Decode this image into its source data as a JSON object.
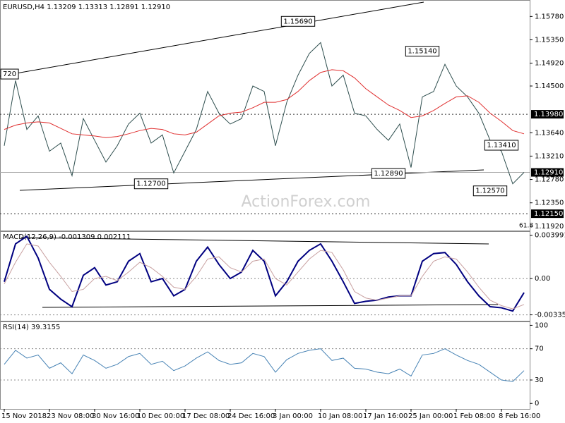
{
  "chart_data": [
    {
      "type": "line",
      "title": "EURUSD,H4  1.13209 1.13313 1.12891 1.12910",
      "watermark": "ActionForex.com",
      "fib_label": "61.8",
      "series": [
        {
          "color": "#2f4f4f",
          "values": [
            1.134,
            1.146,
            1.137,
            1.1395,
            1.133,
            1.1345,
            1.1285,
            1.139,
            1.135,
            1.131,
            1.134,
            1.138,
            1.14,
            1.1345,
            1.136,
            1.129,
            1.133,
            1.137,
            1.144,
            1.14,
            1.138,
            1.139,
            1.145,
            1.144,
            1.134,
            1.142,
            1.147,
            1.151,
            1.153,
            1.145,
            1.147,
            1.14,
            1.1395,
            1.137,
            1.135,
            1.138,
            1.13,
            1.143,
            1.144,
            1.149,
            1.145,
            1.143,
            1.14,
            1.135,
            1.133,
            1.127,
            1.1291
          ]
        },
        {
          "color": "#e03030",
          "values": [
            1.137,
            1.1378,
            1.1382,
            1.1384,
            1.1382,
            1.1372,
            1.1362,
            1.136,
            1.1358,
            1.1355,
            1.1357,
            1.1362,
            1.1368,
            1.1372,
            1.137,
            1.1362,
            1.136,
            1.1365,
            1.138,
            1.1395,
            1.14,
            1.1402,
            1.141,
            1.142,
            1.142,
            1.1425,
            1.144,
            1.146,
            1.1475,
            1.148,
            1.1478,
            1.1465,
            1.1445,
            1.143,
            1.1415,
            1.1405,
            1.1392,
            1.1395,
            1.1405,
            1.1418,
            1.143,
            1.1432,
            1.142,
            1.14,
            1.1385,
            1.1368,
            1.1362
          ]
        }
      ],
      "ylim": [
        1.1184,
        1.1607
      ],
      "yticks": [
        {
          "value": 1.1578,
          "label": "1.15780"
        },
        {
          "value": 1.1535,
          "label": "1.15350"
        },
        {
          "value": 1.1492,
          "label": "1.14920"
        },
        {
          "value": 1.145,
          "label": "1.14500"
        },
        {
          "value": 1.1364,
          "label": "1.13640"
        },
        {
          "value": 1.1321,
          "label": "1.13210"
        },
        {
          "value": 1.1278,
          "label": "1.12780"
        },
        {
          "value": 1.1235,
          "label": "1.12350"
        },
        {
          "value": 1.1192,
          "label": "1.11920"
        }
      ],
      "levels": [
        {
          "value": 1.1398,
          "label": "1.13980",
          "style": "dotted"
        },
        {
          "value": 1.1291,
          "label": "1.12910",
          "style": "solid"
        },
        {
          "value": 1.1215,
          "label": "1.12150",
          "style": "dotted"
        }
      ],
      "annotations": [
        {
          "value": 1.1472,
          "label": "720",
          "index": 0
        },
        {
          "value": 1.127,
          "label": "1.12700",
          "index": 13
        },
        {
          "value": 1.1569,
          "label": "1.15690",
          "index": 26
        },
        {
          "value": 1.1289,
          "label": "1.12890",
          "index": 34
        },
        {
          "value": 1.1514,
          "label": "1.15140",
          "index": 37
        },
        {
          "value": 1.1341,
          "label": "1.13410",
          "index": 44
        },
        {
          "value": 1.1257,
          "label": "1.12570",
          "index": 43
        }
      ]
    },
    {
      "type": "line",
      "title": "MACD(12,26,9) -0.001309  0.002111",
      "series": [
        {
          "color": "#000080",
          "values": [
            -0.0003,
            0.0032,
            0.0039,
            0.0019,
            -0.001,
            -0.0019,
            -0.0026,
            0.0003,
            0.001,
            -0.0006,
            -0.0003,
            0.0016,
            0.0023,
            -0.0003,
            0.0,
            -0.0016,
            -0.001,
            0.0016,
            0.0029,
            0.0013,
            0.0,
            0.0006,
            0.0026,
            0.0016,
            -0.0016,
            -0.0003,
            0.0016,
            0.0026,
            0.0032,
            0.0016,
            -0.0003,
            -0.0023,
            -0.0021,
            -0.002,
            -0.0017,
            -0.0016,
            -0.0016,
            0.0016,
            0.0023,
            0.0024,
            0.0013,
            -0.0003,
            -0.0016,
            -0.0026,
            -0.0027,
            -0.003,
            -0.0013
          ]
        },
        {
          "color": "#c8a0a0",
          "values": [
            -0.0005,
            0.0015,
            0.0032,
            0.003,
            0.0015,
            0.0002,
            -0.0012,
            -0.001,
            0.0,
            0.0002,
            -0.0002,
            0.0006,
            0.0015,
            0.001,
            0.0002,
            -0.0008,
            -0.001,
            0.0002,
            0.0018,
            0.002,
            0.001,
            0.0006,
            0.0016,
            0.0018,
            0.0,
            -0.0006,
            0.0006,
            0.0018,
            0.0026,
            0.0024,
            0.0008,
            -0.0012,
            -0.0018,
            -0.002,
            -0.0018,
            -0.0016,
            -0.0016,
            0.0002,
            0.0016,
            0.002,
            0.0018,
            0.0006,
            -0.0008,
            -0.002,
            -0.0025,
            -0.0028,
            -0.0024
          ]
        }
      ],
      "ylim": [
        -0.0039,
        0.0043
      ],
      "yticks": [
        {
          "value": 0.003991,
          "label": "0.003991"
        },
        {
          "value": 0,
          "label": "0.00"
        },
        {
          "value": -0.003352,
          "label": "-0.003352"
        }
      ]
    },
    {
      "type": "line",
      "title": "RSI(14) 39.3155",
      "categories": [
        "15 Nov 2018",
        null,
        null,
        null,
        "23 Nov 08:00",
        null,
        null,
        null,
        "30 Nov 16:00",
        null,
        null,
        null,
        "10 Dec 00:00",
        null,
        null,
        null,
        "17 Dec 08:00",
        null,
        null,
        null,
        "24 Dec 16:00",
        null,
        null,
        null,
        "3 Jan 00:00",
        null,
        null,
        null,
        "10 Jan 08:00",
        null,
        null,
        null,
        "17 Jan 16:00",
        null,
        null,
        null,
        "25 Jan 00:00",
        null,
        null,
        null,
        "1 Feb 08:00",
        null,
        null,
        null,
        "8 Feb 16:00",
        null,
        null
      ],
      "series": [
        {
          "color": "#4682b4",
          "values": [
            50,
            68,
            58,
            62,
            45,
            52,
            38,
            62,
            55,
            45,
            50,
            60,
            64,
            50,
            54,
            42,
            48,
            58,
            66,
            55,
            50,
            52,
            64,
            60,
            40,
            56,
            64,
            68,
            70,
            55,
            58,
            45,
            44,
            40,
            38,
            44,
            35,
            62,
            64,
            70,
            62,
            55,
            50,
            40,
            30,
            28,
            42
          ]
        }
      ],
      "ylim": [
        -7,
        104
      ],
      "yticks": [
        100,
        70,
        30,
        0
      ]
    }
  ]
}
